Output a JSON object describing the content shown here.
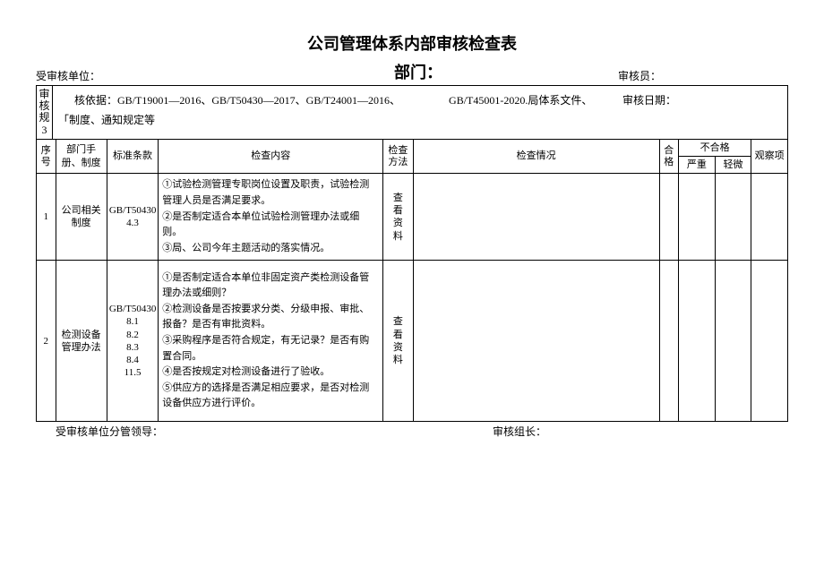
{
  "title": "公司管理体系内部审核检查表",
  "header": {
    "unit_label": "受审核单位：",
    "dept_label": "部门：",
    "auditor_label": "审核员："
  },
  "basis": {
    "side_label": "审核规3",
    "line1_prefix": "核依据：",
    "line1_text": "GB/T19001—2016、GB/T50430—2017、GB/T24001—2016、",
    "line1_gb": "GB/T45001-2020.局体系文件、",
    "date_label": "审核日期：",
    "line2": "「制度、通知规定等"
  },
  "columns": {
    "seq": "序号",
    "dept": "部门手册、制度",
    "std": "标准条款",
    "content": "检查内容",
    "method": "检查方法",
    "situation": "检查情况",
    "pass": "合格",
    "nonconform": "不合格",
    "severe": "严重",
    "minor": "轻微",
    "observe": "观察项"
  },
  "rows": [
    {
      "seq": "1",
      "dept": "公司相关制度",
      "std": "GB/T50430 4.3",
      "content": "①试验检测管理专职岗位设置及职责，试验检测管理人员是否满足要求。\n②是否制定适合本单位试验检测管理办法或细则。\n③局、公司今年主题活动的落实情况。",
      "method": "查看资料"
    },
    {
      "seq": "2",
      "dept": "检测设备管理办法",
      "std": "GB/T50430 8.1 8.2 8.3 8.4 11.5",
      "content": "①是否制定适合本单位非固定资产类检测设备管理办法或细则？\n②检测设备是否按要求分类、分级申报、审批、报备？是否有审批资料。\n③采购程序是否符合规定，有无记录？是否有购置合同。\n④是否按规定对检测设备进行了验收。\n⑤供应方的选择是否满足相应要求，是否对检测设备供应方进行评价。",
      "method": "查看资料"
    }
  ],
  "footer": {
    "leader_label": "受审核单位分管领导：",
    "teamlead_label": "审核组长："
  },
  "style": {
    "page_bg": "#ffffff",
    "border_color": "#000000",
    "text_color": "#000000",
    "title_fontsize": 18,
    "body_fontsize": 11,
    "header_fontsize": 12
  }
}
